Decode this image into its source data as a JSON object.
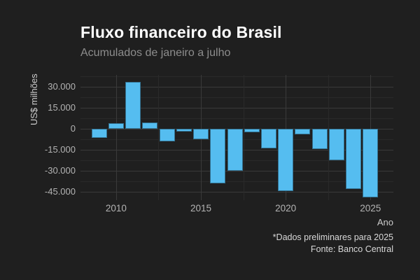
{
  "header": {
    "title": "Fluxo financeiro do Brasil",
    "subtitle": "Acumulados de janeiro a julho"
  },
  "footer": {
    "caption_line1": "*Dados preliminares para 2025",
    "caption_line2": "Fonte: Banco Central"
  },
  "chart_data": {
    "type": "bar",
    "title": "Fluxo financeiro do Brasil",
    "subtitle": "Acumulados de janeiro a julho",
    "xlabel": "Ano",
    "ylabel": "US$ milhões",
    "caption": [
      "*Dados preliminares para 2025",
      "Fonte: Banco Central"
    ],
    "categories": [
      2009,
      2010,
      2011,
      2012,
      2013,
      2014,
      2015,
      2016,
      2017,
      2018,
      2019,
      2020,
      2021,
      2022,
      2023,
      2024,
      2025
    ],
    "values": [
      -6500,
      4000,
      33500,
      4500,
      -9000,
      -2000,
      -7500,
      -39000,
      -30000,
      -2500,
      -14000,
      -44500,
      -4000,
      -14500,
      -22500,
      -43000,
      -49000
    ],
    "x_ticks": [
      2010,
      2015,
      2020,
      2025
    ],
    "x_tick_labels": [
      "2010",
      "2015",
      "2020",
      "2025"
    ],
    "y_ticks": [
      30000,
      15000,
      0,
      -15000,
      -30000,
      -45000
    ],
    "y_tick_labels": [
      "30.000",
      "15.000",
      "0",
      "-15.000",
      "-30.000",
      "-45.000"
    ],
    "xlim": [
      2007.9,
      2026.35
    ],
    "ylim": [
      -51000,
      38500
    ],
    "y_minor_step": 7500,
    "x_minor_step": 2.5,
    "grid": "major+minor",
    "legend": "none",
    "bar_color": "#55bdf0",
    "background": "#1f1f1f",
    "unit": "US$ milhões"
  }
}
